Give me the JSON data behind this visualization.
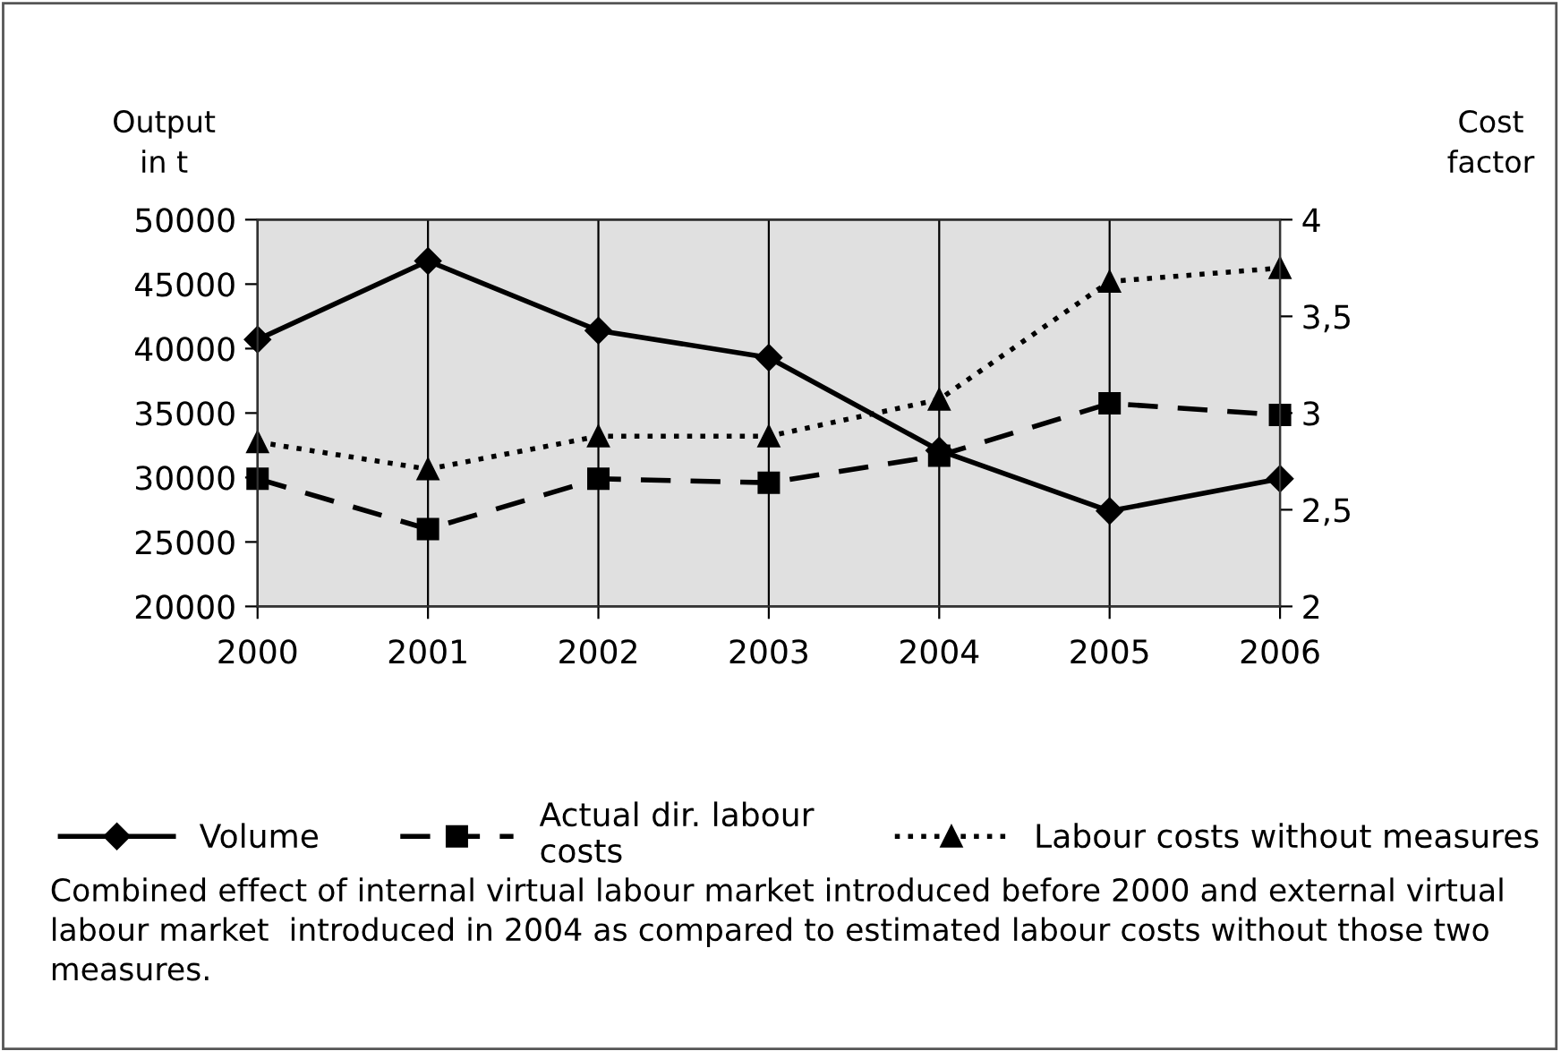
{
  "chart_data": {
    "type": "line",
    "ylabel": "Output\nin t",
    "y2label": "Cost\nfactor",
    "categories": [
      "2000",
      "2001",
      "2002",
      "2003",
      "2004",
      "2005",
      "2006"
    ],
    "series": [
      {
        "name": "Volume",
        "color": "#000000",
        "marker": "diamond",
        "line_style": "solid",
        "values": [
          40700,
          46800,
          41400,
          39300,
          32100,
          27400,
          29900
        ]
      },
      {
        "name": "Actual dir. labour\ncosts",
        "color": "#000000",
        "marker": "square",
        "line_style": "dashed",
        "axis": "y2",
        "values": [
          2.66,
          2.4,
          2.66,
          2.64,
          2.78,
          3.05,
          2.99
        ]
      },
      {
        "name": "Labour costs without measures",
        "color": "#000000",
        "marker": "triangle",
        "line_style": "dotted",
        "axis": "y2",
        "values": [
          2.85,
          2.71,
          2.88,
          2.88,
          3.07,
          3.68,
          3.75
        ]
      }
    ],
    "ylim": [
      20000,
      50000
    ],
    "yticks": [
      20000,
      25000,
      30000,
      35000,
      40000,
      45000,
      50000
    ],
    "y2lim": [
      2,
      4
    ],
    "y2ticks": [
      {
        "value": 2,
        "label": "2"
      },
      {
        "value": 2.5,
        "label": "2,5"
      },
      {
        "value": 3,
        "label": "3"
      },
      {
        "value": 3.5,
        "label": "3,5"
      },
      {
        "value": 4,
        "label": "4"
      }
    ],
    "grid": "x",
    "legend": "bottom",
    "annotations": [
      "Combined effect of internal virtual labour market introduced before 2000 and external virtual labour market  introduced in 2004 as compared to estimated labour costs without those two measures."
    ]
  }
}
